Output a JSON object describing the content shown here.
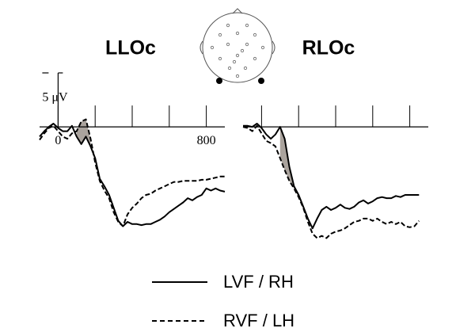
{
  "chart_data": [
    {
      "type": "line",
      "title": "LLOc",
      "x": [
        -100,
        -75,
        -50,
        -25,
        0,
        25,
        50,
        75,
        100,
        125,
        150,
        175,
        200,
        225,
        250,
        275,
        300,
        325,
        350,
        375,
        400,
        425,
        450,
        475,
        500,
        525,
        550,
        575,
        600,
        625,
        650,
        675,
        700,
        725,
        750,
        775,
        800,
        825,
        850,
        875,
        900
      ],
      "series": [
        {
          "name": "LVF / RH",
          "color": "#000000",
          "dash": "solid",
          "values": [
            -0.9,
            -0.4,
            0,
            0.3,
            -0.1,
            -0.4,
            -0.4,
            0.1,
            -0.9,
            -1.6,
            -0.9,
            -1.8,
            -2.9,
            -4.8,
            -5.5,
            -6.3,
            -7.5,
            -8.7,
            -9.2,
            -8.8,
            -9.0,
            -9.0,
            -9.1,
            -9.0,
            -9.0,
            -8.8,
            -8.6,
            -8.3,
            -7.9,
            -7.6,
            -7.3,
            -7.0,
            -6.6,
            -6.8,
            -6.5,
            -6.3,
            -5.7,
            -5.9,
            -5.7,
            -5.9,
            -6.0
          ]
        },
        {
          "name": "RVF / LH",
          "color": "#000000",
          "dash": "dashed",
          "values": [
            -1.2,
            -0.6,
            -0.1,
            0.1,
            -0.4,
            -0.9,
            -1.1,
            -0.6,
            -0.4,
            0.5,
            0.7,
            -1.1,
            -3.3,
            -5.0,
            -5.9,
            -6.6,
            -7.9,
            -8.8,
            -9.2,
            -8.1,
            -7.5,
            -7.1,
            -6.6,
            -6.3,
            -6.2,
            -5.9,
            -5.7,
            -5.5,
            -5.3,
            -5.1,
            -5.1,
            -5.0,
            -5.0,
            -5.0,
            -5.0,
            -4.9,
            -4.9,
            -4.8,
            -4.7,
            -4.6,
            -4.6
          ]
        }
      ],
      "shaded": [
        100,
        175
      ],
      "shade_color": "#aaa39d",
      "xlim": [
        -100,
        900
      ],
      "xticks": [
        0,
        {
          "value": 200,
          "label": null
        },
        {
          "value": 400,
          "label": null
        },
        {
          "value": 600,
          "label": null
        },
        800
      ],
      "ylim": [
        -11,
        5
      ],
      "scale_bar": {
        "value": 5,
        "label": "5 μV"
      }
    },
    {
      "type": "line",
      "title": "RLOc",
      "x": [
        -100,
        -75,
        -50,
        -25,
        0,
        25,
        50,
        75,
        100,
        125,
        150,
        175,
        200,
        225,
        250,
        275,
        300,
        325,
        350,
        375,
        400,
        425,
        450,
        475,
        500,
        525,
        550,
        575,
        600,
        625,
        650,
        675,
        700,
        725,
        750,
        775,
        800,
        825,
        850
      ],
      "series": [
        {
          "color": "#000000",
          "dash": "solid",
          "values": [
            0.1,
            0.1,
            0,
            0.3,
            -0.1,
            -0.7,
            -1.1,
            -0.7,
            0,
            -1.1,
            -3.7,
            -5.5,
            -6.3,
            -7.4,
            -8.5,
            -9.4,
            -8.5,
            -7.7,
            -7.4,
            -7.7,
            -7.5,
            -7.2,
            -7.5,
            -7.6,
            -7.4,
            -7.0,
            -6.8,
            -7.1,
            -6.9,
            -6.6,
            -6.5,
            -6.6,
            -6.6,
            -6.4,
            -6.5,
            -6.3,
            -6.3,
            -6.3,
            -6.3
          ]
        },
        {
          "color": "#000000",
          "dash": "dashed",
          "values": [
            0,
            -0.1,
            -0.4,
            0.1,
            -0.6,
            -1.3,
            -1.5,
            -1.8,
            -2.9,
            -4.0,
            -5.0,
            -5.7,
            -6.5,
            -7.5,
            -8.8,
            -9.9,
            -10.3,
            -10.1,
            -10.3,
            -9.9,
            -9.7,
            -9.6,
            -9.4,
            -9.1,
            -8.8,
            -8.7,
            -8.5,
            -8.5,
            -8.7,
            -8.5,
            -8.8,
            -9.0,
            -8.8,
            -9.0,
            -8.8,
            -9.2,
            -9.3,
            -9.2,
            -8.7
          ]
        }
      ],
      "shaded": [
        100,
        200
      ],
      "shade_color": "#aaa39d",
      "xlim": [
        -100,
        900
      ],
      "xticks": [
        {
          "value": 0,
          "label": null
        },
        {
          "value": 200,
          "label": null
        },
        {
          "value": 400,
          "label": null
        },
        {
          "value": 600,
          "label": null
        },
        {
          "value": 800,
          "label": null
        }
      ],
      "ylim": [
        -11,
        5
      ]
    }
  ]
}
